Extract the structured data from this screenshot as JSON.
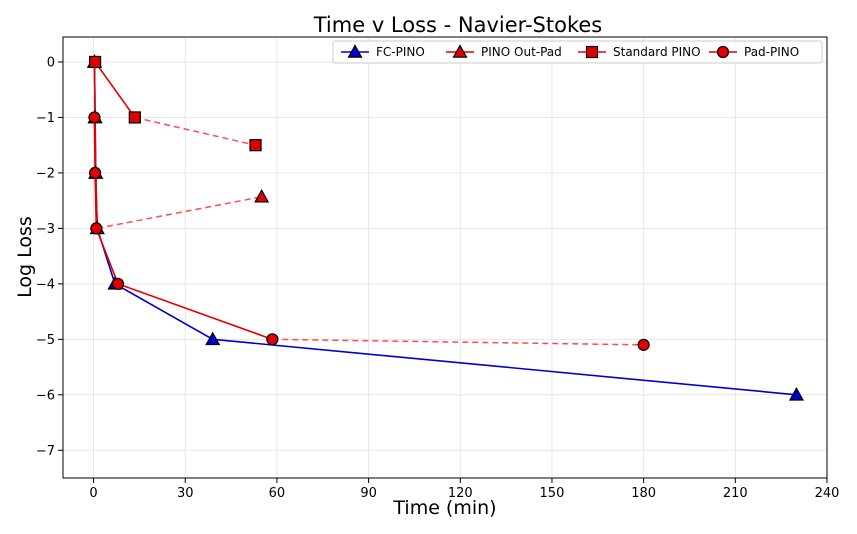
{
  "chart_data": {
    "type": "line",
    "title": "Time v Loss - Navier-Stokes",
    "xlabel": "Time (min)",
    "ylabel": "Log Loss",
    "xlim": [
      -10,
      240
    ],
    "ylim": [
      -7.5,
      0.45
    ],
    "xticks": [
      0,
      30,
      60,
      90,
      120,
      150,
      180,
      210,
      240
    ],
    "yticks": [
      0,
      -1,
      -2,
      -3,
      -4,
      -5,
      -6,
      -7
    ],
    "grid": true,
    "legend_position": "top-right",
    "series": [
      {
        "name": "FC-PINO",
        "color": "#0000cc",
        "marker_fill": "#0000cc",
        "marker": "triangle",
        "line_style": "solid",
        "points": [
          [
            0.3,
            0
          ],
          [
            0.5,
            -1
          ],
          [
            0.7,
            -2
          ],
          [
            1.2,
            -3
          ],
          [
            7,
            -4
          ],
          [
            39,
            -5
          ],
          [
            230,
            -6
          ]
        ],
        "dashed_tail": null
      },
      {
        "name": "PINO Out-Pad",
        "color": "#e00000",
        "marker_fill": "#e00000",
        "marker": "triangle",
        "line_style": "solid",
        "points": [
          [
            0.3,
            0
          ],
          [
            0.5,
            -1
          ],
          [
            0.7,
            -2
          ],
          [
            1.2,
            -3
          ]
        ],
        "dashed_tail": [
          55,
          -2.43
        ]
      },
      {
        "name": "Standard PINO",
        "color": "#e00000",
        "marker_fill": "#e00000",
        "marker": "square",
        "line_style": "solid",
        "points": [
          [
            0.5,
            0
          ],
          [
            13.5,
            -1
          ]
        ],
        "dashed_tail": [
          53,
          -1.5
        ]
      },
      {
        "name": "Pad-PINO",
        "color": "#e00000",
        "marker_fill": "#e00000",
        "marker": "circle",
        "line_style": "solid",
        "points": [
          [
            0.3,
            -1
          ],
          [
            0.5,
            -2
          ],
          [
            0.9,
            -3
          ],
          [
            8,
            -4
          ],
          [
            58.5,
            -5
          ]
        ],
        "dashed_tail": [
          180,
          -5.1
        ]
      }
    ]
  }
}
